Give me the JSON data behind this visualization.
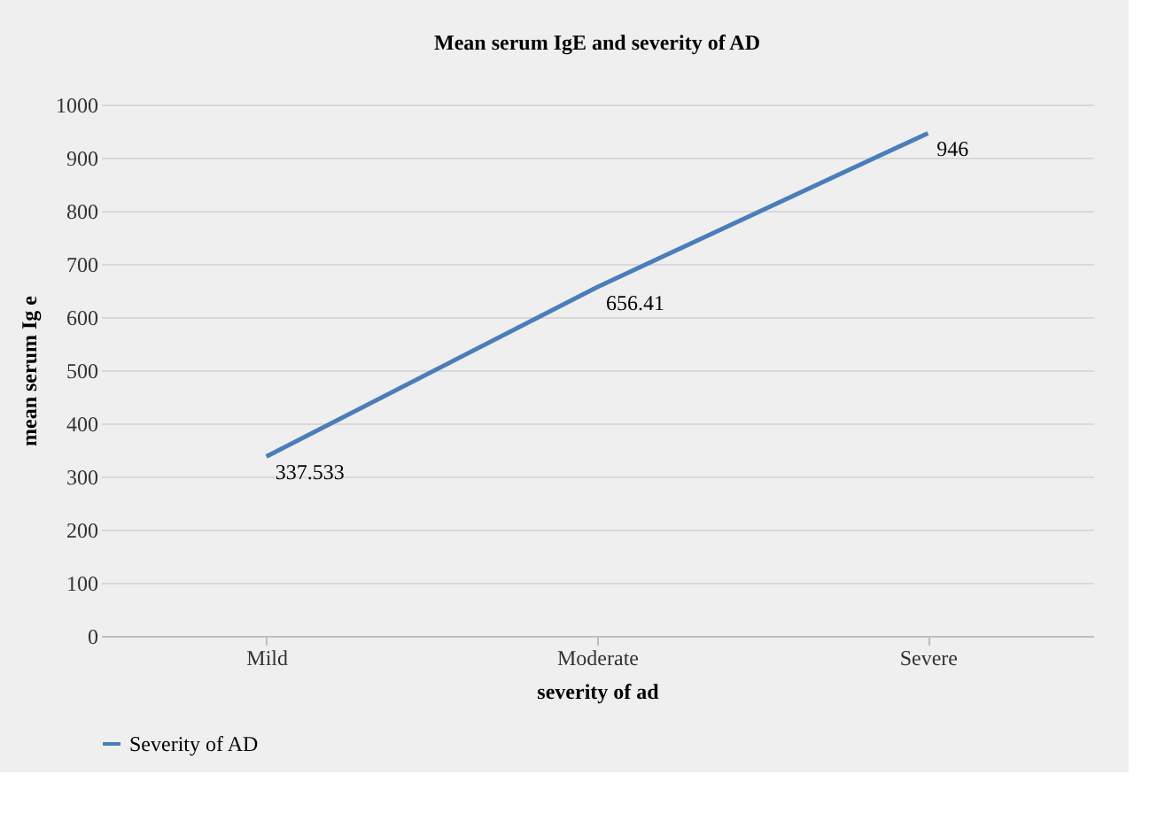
{
  "chart_data": {
    "type": "line",
    "title": "Mean serum IgE and severity of AD",
    "xlabel": "severity of ad",
    "ylabel": "mean serum Ig e",
    "categories": [
      "Mild",
      "Moderate",
      "Severe"
    ],
    "series": [
      {
        "name": "Severity of AD",
        "color": "#4a7ebb",
        "values": [
          337.533,
          656.41,
          946
        ]
      }
    ],
    "ylim": [
      0,
      1000
    ],
    "yticks": [
      0,
      100,
      200,
      300,
      400,
      500,
      600,
      700,
      800,
      900,
      1000
    ],
    "grid": "y",
    "legend": "bottom",
    "data_labels": true,
    "marker": "none",
    "line_style": "solid"
  }
}
